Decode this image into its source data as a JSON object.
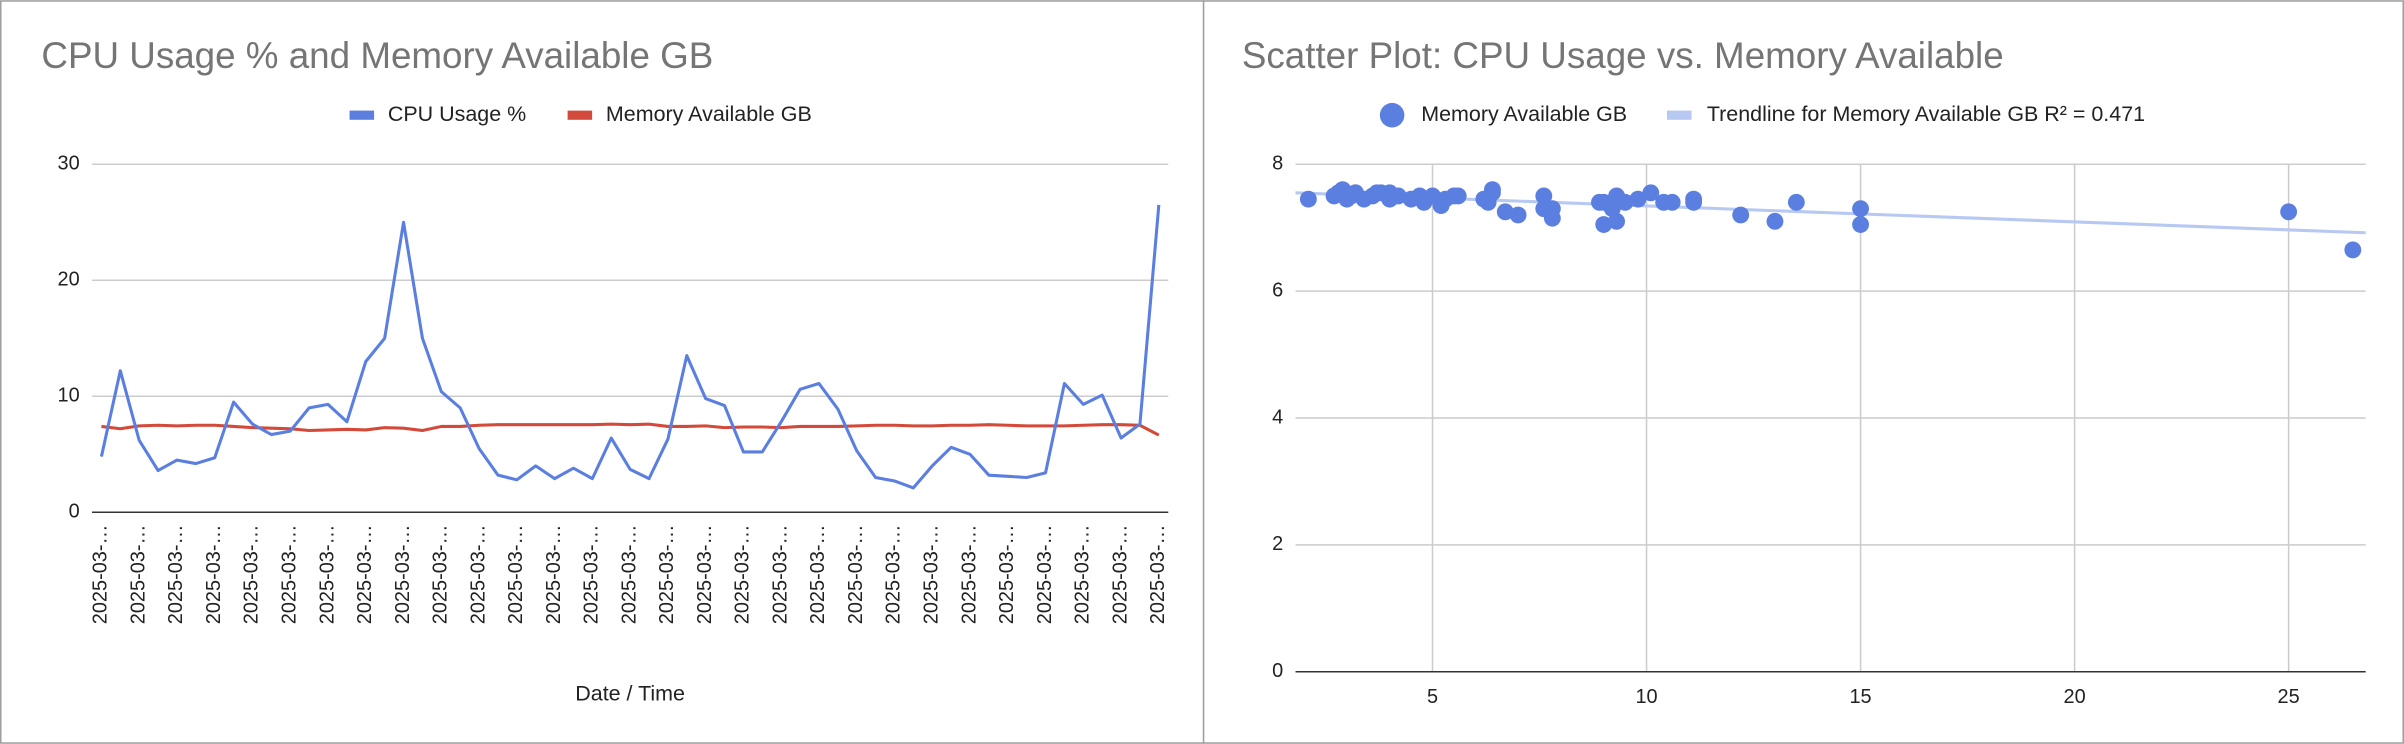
{
  "chart_data": [
    {
      "type": "line",
      "title": "CPU Usage %  and Memory Available GB",
      "xlabel": "Date / Time",
      "categories": [
        "2025-03-…",
        null,
        "2025-03-…",
        null,
        "2025-03-…",
        null,
        "2025-03-…",
        null,
        "2025-03-…",
        null,
        "2025-03-…",
        null,
        "2025-03-…",
        null,
        "2025-03-…",
        null,
        "2025-03-…",
        null,
        "2025-03-…",
        null,
        "2025-03-…",
        null,
        "2025-03-…",
        null,
        "2025-03-…",
        null,
        "2025-03-…",
        null,
        "2025-03-…",
        null,
        "2025-03-…",
        null,
        "2025-03-…",
        null,
        "2025-03-…",
        null,
        "2025-03-…",
        null,
        "2025-03-…",
        null,
        "2025-03-…",
        null,
        "2025-03-…",
        null,
        "2025-03-…",
        null,
        "2025-03-…",
        null,
        "2025-03-…",
        null,
        "2025-03-…",
        null,
        "2025-03-…",
        null,
        "2025-03-…",
        null,
        "2025-03-…"
      ],
      "series": [
        {
          "name": "CPU Usage %",
          "color": "#5b7fe0",
          "values": [
            4.8,
            12.2,
            6.2,
            3.6,
            4.5,
            4.2,
            4.7,
            9.5,
            7.6,
            6.7,
            7.0,
            9.0,
            9.3,
            7.8,
            13.0,
            15.0,
            25.0,
            15.0,
            10.4,
            9.0,
            5.5,
            3.2,
            2.8,
            4.0,
            2.9,
            3.8,
            2.9,
            6.4,
            3.7,
            2.9,
            6.3,
            13.5,
            9.8,
            9.2,
            5.2,
            5.2,
            7.8,
            10.6,
            11.1,
            8.9,
            5.3,
            3.0,
            2.7,
            2.1,
            4.0,
            5.6,
            5.0,
            3.2,
            3.1,
            3.0,
            3.4,
            11.1,
            9.3,
            10.1,
            6.4,
            7.6,
            26.5
          ]
        },
        {
          "name": "Memory Available GB",
          "color": "#d34a3a",
          "values": [
            7.4,
            7.2,
            7.45,
            7.5,
            7.45,
            7.5,
            7.5,
            7.4,
            7.3,
            7.25,
            7.2,
            7.05,
            7.1,
            7.15,
            7.1,
            7.3,
            7.25,
            7.05,
            7.4,
            7.4,
            7.5,
            7.55,
            7.55,
            7.55,
            7.55,
            7.55,
            7.55,
            7.6,
            7.55,
            7.6,
            7.4,
            7.4,
            7.45,
            7.3,
            7.35,
            7.35,
            7.3,
            7.4,
            7.4,
            7.4,
            7.45,
            7.5,
            7.5,
            7.45,
            7.45,
            7.5,
            7.5,
            7.55,
            7.5,
            7.45,
            7.45,
            7.45,
            7.5,
            7.55,
            7.55,
            7.5,
            6.65
          ]
        }
      ],
      "ylim": [
        0,
        30
      ],
      "yticks": [
        0,
        10,
        20,
        30
      ],
      "grid": true,
      "legend": "top"
    },
    {
      "type": "scatter",
      "title": "Scatter Plot: CPU Usage vs. Memory Available",
      "x": [
        4.8,
        12.2,
        6.2,
        3.6,
        4.5,
        4.2,
        4.7,
        9.5,
        7.6,
        6.7,
        7.0,
        9.0,
        9.3,
        7.8,
        13.0,
        15.0,
        25.0,
        15.0,
        10.4,
        9.0,
        5.5,
        3.2,
        2.8,
        4.0,
        2.9,
        3.8,
        2.9,
        6.4,
        3.7,
        2.9,
        6.3,
        13.5,
        9.8,
        9.2,
        5.2,
        5.2,
        7.8,
        10.6,
        11.1,
        8.9,
        5.3,
        3.0,
        2.7,
        2.1,
        4.0,
        5.6,
        5.0,
        3.2,
        3.1,
        3.0,
        3.4,
        11.1,
        9.3,
        10.1,
        6.4,
        7.6,
        26.5
      ],
      "series": [
        {
          "name": "Memory Available GB",
          "color": "#5b7fe0",
          "values": [
            7.4,
            7.2,
            7.45,
            7.5,
            7.45,
            7.5,
            7.5,
            7.4,
            7.3,
            7.25,
            7.2,
            7.05,
            7.1,
            7.15,
            7.1,
            7.3,
            7.25,
            7.05,
            7.4,
            7.4,
            7.5,
            7.55,
            7.55,
            7.55,
            7.55,
            7.55,
            7.55,
            7.6,
            7.55,
            7.6,
            7.4,
            7.4,
            7.45,
            7.3,
            7.35,
            7.35,
            7.3,
            7.4,
            7.4,
            7.4,
            7.45,
            7.5,
            7.5,
            7.45,
            7.45,
            7.5,
            7.5,
            7.55,
            7.5,
            7.45,
            7.45,
            7.45,
            7.5,
            7.55,
            7.55,
            7.5,
            6.65
          ]
        }
      ],
      "trendline": {
        "name": "Trendline for Memory Available GB  R² = 0.471",
        "color": "#b7c8f3",
        "x": [
          1.8,
          26.8
        ],
        "values": [
          7.55,
          6.92
        ]
      },
      "xlim": [
        1.8,
        26.8
      ],
      "xticks": [
        5,
        10,
        15,
        20,
        25
      ],
      "ylim": [
        0,
        8
      ],
      "yticks": [
        0,
        2,
        4,
        6,
        8
      ],
      "grid": true,
      "legend": "top"
    }
  ]
}
